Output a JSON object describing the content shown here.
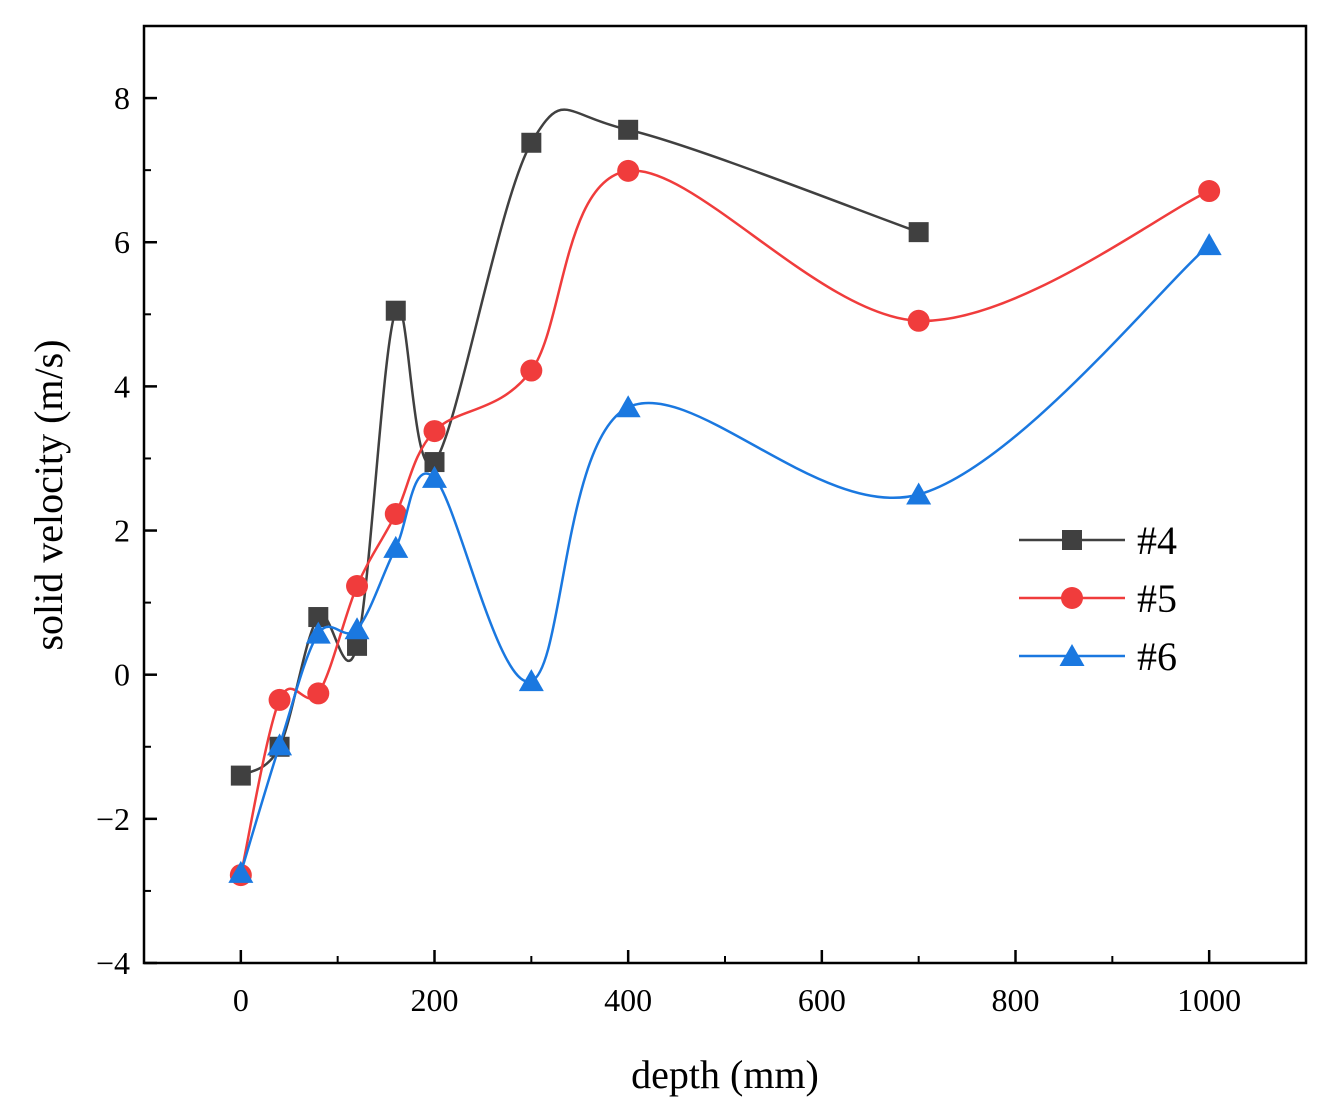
{
  "chart_data": {
    "type": "line",
    "title": "",
    "xlabel": "depth (mm)",
    "ylabel": "solid velocity (m/s)",
    "xlim": [
      -100,
      1100
    ],
    "ylim": [
      -4,
      9
    ],
    "x_ticks": [
      0,
      200,
      400,
      600,
      800,
      1000
    ],
    "x_tick_labels": [
      "0",
      "200",
      "400",
      "600",
      "800",
      "1000"
    ],
    "y_ticks": [
      -4,
      -2,
      0,
      2,
      4,
      6,
      8
    ],
    "y_tick_labels": [
      "−4",
      "−2",
      "0",
      "2",
      "4",
      "6",
      "8"
    ],
    "grid": false,
    "legend_position": "right",
    "series": [
      {
        "name": "#4",
        "color": "#404040",
        "marker": "square",
        "x": [
          0,
          40,
          80,
          120,
          160,
          200,
          300,
          400,
          700
        ],
        "y": [
          -1.4,
          -1.0,
          0.8,
          0.4,
          5.05,
          2.95,
          7.38,
          7.56,
          6.14
        ]
      },
      {
        "name": "#5",
        "color": "#f03c3c",
        "marker": "circle",
        "x": [
          0,
          40,
          80,
          120,
          160,
          200,
          300,
          400,
          700,
          1000
        ],
        "y": [
          -2.78,
          -0.35,
          -0.26,
          1.23,
          2.23,
          3.38,
          4.22,
          6.99,
          4.91,
          6.71
        ]
      },
      {
        "name": "#6",
        "color": "#1a78e0",
        "marker": "triangle",
        "x": [
          0,
          40,
          80,
          120,
          160,
          200,
          300,
          400,
          700,
          1000
        ],
        "y": [
          -2.75,
          -0.98,
          0.57,
          0.63,
          1.76,
          2.73,
          -0.09,
          3.71,
          2.5,
          5.96
        ]
      }
    ]
  }
}
